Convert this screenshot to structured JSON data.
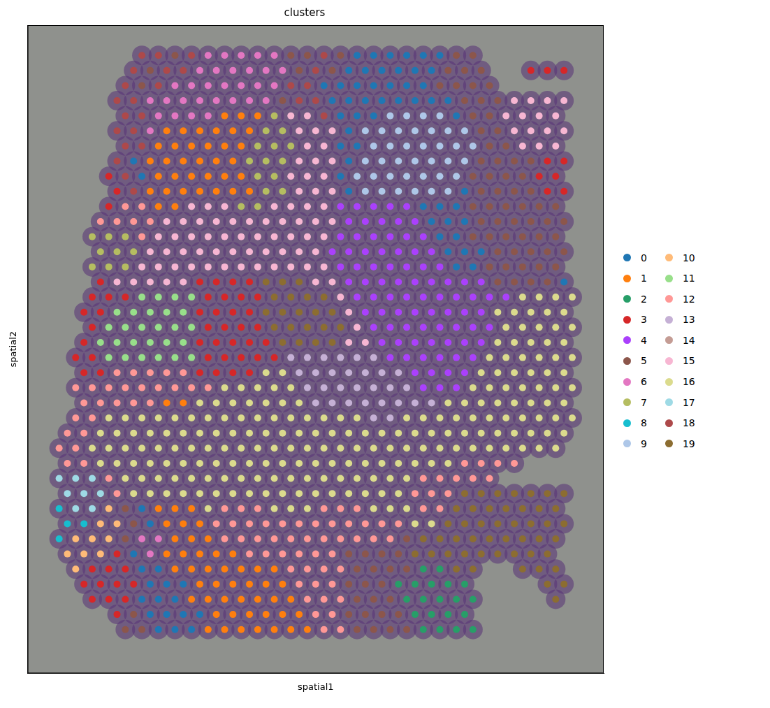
{
  "chart_data": {
    "type": "scatter",
    "title": "clusters",
    "x_label": "spatial1",
    "y_label": "spatial2",
    "xlim": [
      -1.9,
      32.9
    ],
    "ylim": [
      40.9,
      -2.0
    ],
    "tick_labels": false,
    "grid": false,
    "legend": "right",
    "series": [
      {
        "name": "0",
        "color": "#1f77b4"
      },
      {
        "name": "1",
        "color": "#ff7f0e"
      },
      {
        "name": "2",
        "color": "#279e68"
      },
      {
        "name": "3",
        "color": "#d62728"
      },
      {
        "name": "4",
        "color": "#aa40fc"
      },
      {
        "name": "5",
        "color": "#8c564b"
      },
      {
        "name": "6",
        "color": "#e377c2"
      },
      {
        "name": "7",
        "color": "#b5bd61"
      },
      {
        "name": "8",
        "color": "#17becf"
      },
      {
        "name": "9",
        "color": "#aec7e8"
      },
      {
        "name": "10",
        "color": "#ffbb78"
      },
      {
        "name": "11",
        "color": "#98df8a"
      },
      {
        "name": "12",
        "color": "#ff9896"
      },
      {
        "name": "13",
        "color": "#c5b0d5"
      },
      {
        "name": "14",
        "color": "#c49c94"
      },
      {
        "name": "15",
        "color": "#f7b6d2"
      },
      {
        "name": "16",
        "color": "#dbdb8d"
      },
      {
        "name": "17",
        "color": "#9edae5"
      },
      {
        "name": "18",
        "color": "#ad494a"
      },
      {
        "name": "19",
        "color": "#8c6d31"
      }
    ],
    "cells": [
      [
        null,
        null,
        null,
        null,
        null,
        18,
        18,
        5,
        18,
        6,
        6,
        6,
        6,
        6,
        5,
        5,
        18,
        5,
        0,
        0,
        0,
        0,
        0,
        0,
        5,
        5,
        null,
        null,
        null,
        null,
        null,
        null
      ],
      [
        null,
        null,
        null,
        null,
        18,
        5,
        18,
        18,
        6,
        6,
        6,
        6,
        6,
        6,
        5,
        18,
        5,
        0,
        0,
        0,
        0,
        0,
        0,
        5,
        5,
        5,
        null,
        null,
        3,
        3,
        3,
        null
      ],
      [
        null,
        null,
        null,
        null,
        18,
        5,
        18,
        6,
        6,
        6,
        6,
        6,
        6,
        6,
        18,
        18,
        0,
        0,
        0,
        0,
        0,
        0,
        0,
        5,
        5,
        5,
        5,
        null,
        null,
        null,
        null,
        null
      ],
      [
        null,
        null,
        null,
        18,
        18,
        6,
        6,
        6,
        6,
        6,
        6,
        6,
        6,
        5,
        18,
        18,
        0,
        0,
        0,
        0,
        0,
        0,
        0,
        0,
        5,
        5,
        5,
        15,
        15,
        15,
        15,
        null
      ],
      [
        null,
        null,
        null,
        null,
        18,
        18,
        6,
        6,
        6,
        6,
        1,
        1,
        1,
        7,
        15,
        15,
        18,
        0,
        0,
        0,
        9,
        9,
        9,
        9,
        0,
        5,
        5,
        15,
        15,
        15,
        15,
        null
      ],
      [
        null,
        null,
        null,
        18,
        18,
        6,
        1,
        1,
        1,
        1,
        1,
        1,
        7,
        7,
        15,
        15,
        15,
        0,
        9,
        9,
        9,
        9,
        9,
        9,
        9,
        5,
        5,
        15,
        15,
        15,
        15,
        null
      ],
      [
        null,
        null,
        null,
        null,
        18,
        18,
        1,
        1,
        1,
        1,
        1,
        1,
        7,
        7,
        7,
        15,
        15,
        0,
        0,
        9,
        9,
        9,
        9,
        9,
        9,
        9,
        5,
        5,
        15,
        15,
        15,
        null
      ],
      [
        null,
        null,
        null,
        18,
        0,
        1,
        1,
        1,
        1,
        1,
        1,
        7,
        7,
        7,
        15,
        15,
        15,
        0,
        9,
        9,
        9,
        9,
        9,
        9,
        9,
        5,
        5,
        5,
        5,
        3,
        3,
        null
      ],
      [
        null,
        null,
        null,
        3,
        18,
        0,
        1,
        1,
        1,
        1,
        1,
        1,
        7,
        7,
        15,
        15,
        15,
        0,
        9,
        9,
        9,
        9,
        9,
        9,
        9,
        5,
        5,
        5,
        5,
        3,
        3,
        null
      ],
      [
        null,
        null,
        null,
        3,
        18,
        1,
        1,
        1,
        1,
        1,
        1,
        1,
        7,
        7,
        15,
        15,
        15,
        0,
        9,
        9,
        9,
        9,
        9,
        9,
        0,
        5,
        5,
        5,
        5,
        3,
        3,
        null
      ],
      [
        null,
        null,
        null,
        3,
        12,
        12,
        1,
        1,
        15,
        15,
        15,
        7,
        7,
        15,
        15,
        15,
        15,
        4,
        4,
        4,
        4,
        4,
        0,
        0,
        0,
        5,
        5,
        5,
        5,
        5,
        5,
        null
      ],
      [
        null,
        null,
        12,
        12,
        12,
        12,
        15,
        15,
        15,
        15,
        15,
        15,
        15,
        15,
        15,
        15,
        15,
        4,
        4,
        4,
        4,
        4,
        0,
        0,
        0,
        5,
        5,
        5,
        5,
        5,
        5,
        null
      ],
      [
        null,
        null,
        7,
        7,
        7,
        12,
        15,
        15,
        15,
        15,
        15,
        15,
        15,
        15,
        15,
        15,
        15,
        4,
        4,
        4,
        4,
        4,
        4,
        0,
        0,
        5,
        5,
        5,
        5,
        5,
        5,
        null
      ],
      [
        null,
        null,
        7,
        7,
        7,
        15,
        15,
        15,
        15,
        15,
        15,
        15,
        15,
        15,
        15,
        15,
        4,
        4,
        4,
        4,
        4,
        4,
        4,
        0,
        0,
        0,
        5,
        5,
        5,
        5,
        5,
        null
      ],
      [
        null,
        null,
        7,
        7,
        7,
        15,
        15,
        15,
        15,
        15,
        15,
        15,
        15,
        15,
        15,
        15,
        15,
        4,
        4,
        4,
        4,
        4,
        4,
        4,
        0,
        0,
        5,
        5,
        5,
        5,
        5,
        null
      ],
      [
        null,
        null,
        3,
        15,
        15,
        15,
        15,
        15,
        3,
        3,
        3,
        3,
        19,
        19,
        19,
        15,
        15,
        4,
        4,
        4,
        4,
        4,
        4,
        4,
        4,
        4,
        5,
        5,
        5,
        5,
        0,
        null
      ],
      [
        null,
        null,
        3,
        3,
        3,
        11,
        11,
        11,
        11,
        3,
        3,
        3,
        3,
        19,
        19,
        19,
        19,
        15,
        4,
        4,
        4,
        4,
        4,
        4,
        4,
        4,
        4,
        4,
        16,
        16,
        16,
        16
      ],
      [
        null,
        3,
        3,
        11,
        11,
        11,
        11,
        11,
        3,
        3,
        3,
        3,
        19,
        19,
        19,
        19,
        19,
        15,
        4,
        4,
        4,
        4,
        4,
        4,
        4,
        4,
        16,
        16,
        16,
        16,
        16,
        null
      ],
      [
        null,
        null,
        3,
        11,
        11,
        11,
        11,
        11,
        11,
        3,
        3,
        3,
        3,
        19,
        19,
        19,
        19,
        19,
        15,
        4,
        4,
        4,
        4,
        4,
        4,
        4,
        4,
        16,
        16,
        16,
        16,
        16
      ],
      [
        null,
        3,
        11,
        11,
        11,
        11,
        11,
        11,
        3,
        3,
        3,
        3,
        3,
        19,
        19,
        19,
        19,
        15,
        15,
        4,
        4,
        4,
        4,
        4,
        4,
        4,
        16,
        16,
        16,
        16,
        16,
        null
      ],
      [
        null,
        3,
        3,
        11,
        11,
        11,
        11,
        11,
        11,
        3,
        3,
        3,
        3,
        3,
        13,
        13,
        13,
        13,
        13,
        13,
        4,
        4,
        4,
        4,
        4,
        4,
        16,
        16,
        16,
        16,
        16,
        16
      ],
      [
        null,
        3,
        3,
        12,
        12,
        12,
        12,
        12,
        3,
        3,
        3,
        3,
        16,
        16,
        13,
        13,
        13,
        13,
        13,
        13,
        13,
        4,
        4,
        4,
        4,
        16,
        16,
        16,
        16,
        16,
        16,
        null
      ],
      [
        null,
        12,
        12,
        12,
        12,
        12,
        12,
        12,
        12,
        12,
        16,
        16,
        16,
        16,
        16,
        13,
        13,
        13,
        13,
        13,
        13,
        13,
        4,
        4,
        4,
        16,
        16,
        16,
        16,
        16,
        16,
        16
      ],
      [
        null,
        12,
        12,
        12,
        12,
        12,
        1,
        1,
        16,
        16,
        16,
        16,
        16,
        16,
        16,
        13,
        13,
        13,
        13,
        13,
        13,
        13,
        13,
        16,
        16,
        16,
        16,
        16,
        16,
        16,
        16,
        null
      ],
      [
        null,
        12,
        12,
        16,
        16,
        16,
        16,
        16,
        16,
        16,
        16,
        16,
        16,
        16,
        16,
        16,
        16,
        16,
        16,
        13,
        13,
        16,
        16,
        16,
        16,
        16,
        16,
        16,
        16,
        16,
        16,
        16
      ],
      [
        12,
        12,
        16,
        16,
        16,
        16,
        16,
        16,
        16,
        16,
        16,
        16,
        16,
        16,
        16,
        16,
        16,
        16,
        16,
        16,
        16,
        16,
        16,
        16,
        16,
        16,
        16,
        16,
        16,
        16,
        16,
        null
      ],
      [
        12,
        12,
        16,
        16,
        16,
        16,
        16,
        16,
        16,
        16,
        16,
        16,
        16,
        16,
        16,
        16,
        16,
        16,
        16,
        16,
        16,
        16,
        16,
        16,
        16,
        16,
        16,
        16,
        16,
        16,
        16,
        null
      ],
      [
        12,
        12,
        16,
        16,
        16,
        16,
        16,
        16,
        16,
        16,
        16,
        16,
        16,
        16,
        16,
        16,
        16,
        16,
        16,
        16,
        16,
        16,
        16,
        16,
        12,
        12,
        12,
        12,
        null,
        null,
        null,
        null
      ],
      [
        17,
        17,
        17,
        12,
        16,
        16,
        16,
        16,
        16,
        16,
        16,
        16,
        16,
        16,
        16,
        16,
        16,
        16,
        16,
        16,
        16,
        16,
        12,
        12,
        12,
        12,
        12,
        null,
        null,
        null,
        null,
        null
      ],
      [
        17,
        17,
        17,
        12,
        16,
        16,
        16,
        16,
        16,
        16,
        16,
        16,
        16,
        16,
        16,
        16,
        16,
        16,
        16,
        16,
        16,
        12,
        12,
        12,
        19,
        19,
        19,
        19,
        19,
        19,
        19,
        null
      ],
      [
        8,
        17,
        17,
        10,
        5,
        0,
        1,
        1,
        1,
        16,
        12,
        12,
        12,
        16,
        16,
        16,
        12,
        12,
        12,
        16,
        16,
        16,
        12,
        12,
        19,
        19,
        19,
        19,
        19,
        19,
        19,
        null
      ],
      [
        8,
        8,
        10,
        10,
        5,
        0,
        1,
        1,
        1,
        12,
        12,
        12,
        12,
        12,
        12,
        12,
        12,
        12,
        12,
        12,
        12,
        16,
        16,
        19,
        19,
        19,
        19,
        19,
        19,
        19,
        19,
        null
      ],
      [
        8,
        10,
        10,
        10,
        5,
        6,
        6,
        1,
        1,
        1,
        12,
        12,
        12,
        12,
        12,
        12,
        12,
        12,
        12,
        12,
        12,
        5,
        19,
        19,
        19,
        19,
        19,
        19,
        19,
        19,
        19,
        null
      ],
      [
        10,
        10,
        10,
        3,
        0,
        6,
        1,
        1,
        1,
        1,
        1,
        12,
        12,
        12,
        12,
        12,
        12,
        5,
        5,
        5,
        5,
        19,
        19,
        19,
        19,
        19,
        19,
        19,
        19,
        19,
        null,
        null
      ],
      [
        null,
        10,
        3,
        3,
        3,
        0,
        0,
        1,
        1,
        1,
        1,
        1,
        1,
        1,
        12,
        12,
        12,
        12,
        5,
        5,
        5,
        5,
        2,
        2,
        19,
        19,
        null,
        null,
        19,
        19,
        19,
        null
      ],
      [
        null,
        3,
        3,
        3,
        3,
        0,
        0,
        0,
        1,
        1,
        1,
        1,
        1,
        1,
        12,
        12,
        12,
        5,
        5,
        5,
        2,
        2,
        2,
        2,
        2,
        null,
        null,
        null,
        null,
        19,
        19,
        null
      ],
      [
        null,
        null,
        3,
        3,
        3,
        0,
        0,
        0,
        1,
        1,
        1,
        1,
        1,
        1,
        1,
        12,
        12,
        12,
        5,
        5,
        5,
        2,
        2,
        2,
        2,
        2,
        null,
        null,
        null,
        null,
        19,
        null
      ],
      [
        null,
        null,
        null,
        3,
        5,
        0,
        0,
        0,
        0,
        1,
        1,
        1,
        1,
        1,
        1,
        12,
        12,
        5,
        5,
        5,
        5,
        2,
        2,
        2,
        2,
        null,
        null,
        null,
        null,
        null,
        null,
        null
      ],
      [
        null,
        null,
        null,
        null,
        5,
        5,
        0,
        0,
        0,
        1,
        1,
        1,
        1,
        1,
        1,
        1,
        12,
        12,
        5,
        5,
        5,
        5,
        2,
        2,
        2,
        2,
        null,
        null,
        null,
        null,
        null,
        null
      ]
    ]
  }
}
